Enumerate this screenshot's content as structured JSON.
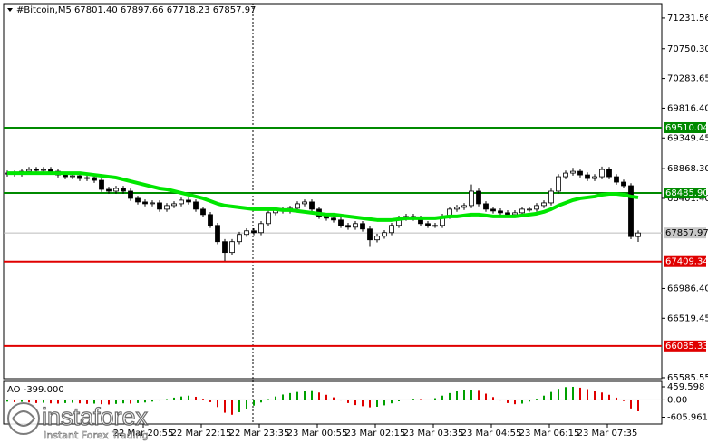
{
  "chart_data": {
    "type": "candlestick",
    "title": "#Bitcoin,M5  67801.40 67897.66 67718.23 67857.97",
    "ylim": [
      65571,
      71458
    ],
    "yticks": [
      71231.56,
      {
        "value": 70750.3,
        "label": "70750.30"
      },
      70283.65,
      {
        "value": 69816.4,
        "label": "69816.40"
      },
      69349.45,
      {
        "value": 68868.3,
        "label": "68868.30"
      },
      {
        "value": 68401.4,
        "label": "68401.40"
      },
      {
        "value": 66986.4,
        "label": "66986.40"
      },
      66519.45,
      65585.55
    ],
    "x_labels": [
      "22 Mar 20:55",
      "22 Mar 22:15",
      "22 Mar 23:35",
      "23 Mar 00:55",
      "23 Mar 02:15",
      "23 Mar 03:35",
      "23 Mar 04:55",
      "23 Mar 06:15",
      "23 Mar 07:35"
    ],
    "up_color": "#ffffff",
    "down_color": "#000000",
    "candles": [
      [
        68783.6,
        68837.8,
        68743.6,
        68797.8
      ],
      [
        68797.8,
        68837.8,
        68743.6,
        68783.6
      ],
      [
        68783.6,
        68866.1,
        68743.6,
        68826.1
      ],
      [
        68826.1,
        68894.4,
        68786.1,
        68854.4
      ],
      [
        68854.4,
        68894.4,
        68800.2,
        68840.2
      ],
      [
        68840.2,
        68894.4,
        68800.2,
        68854.4
      ],
      [
        68854.4,
        68894.4,
        68786.1,
        68826.1
      ],
      [
        68826.1,
        68866.1,
        68729.5,
        68769.5
      ],
      [
        68769.5,
        68809.5,
        68701.2,
        68741.2
      ],
      [
        68741.2,
        68795.3,
        68701.2,
        68755.3
      ],
      [
        68755.3,
        68795.3,
        68672.9,
        68712.9
      ],
      [
        68712.9,
        68767.0,
        68672.9,
        68727.0
      ],
      [
        68727.0,
        68767.0,
        68644.6,
        68684.6
      ],
      [
        68684.6,
        68724.6,
        68503.1,
        68543.1
      ],
      [
        68543.1,
        68583.1,
        68474.8,
        68514.8
      ],
      [
        68514.8,
        68597.2,
        68474.8,
        68557.2
      ],
      [
        68557.2,
        68597.2,
        68474.8,
        68514.8
      ],
      [
        68514.8,
        68554.8,
        68361.6,
        68401.6
      ],
      [
        68401.6,
        68441.6,
        68305.0,
        68345.0
      ],
      [
        68345.0,
        68385.0,
        68276.7,
        68316.7
      ],
      [
        68316.7,
        68370.8,
        68276.7,
        68330.8
      ],
      [
        68330.8,
        68370.8,
        68191.8,
        68231.8
      ],
      [
        68231.8,
        68328.4,
        68191.8,
        68288.4
      ],
      [
        68288.4,
        68356.7,
        68248.4,
        68316.7
      ],
      [
        68316.7,
        68413.3,
        68276.7,
        68373.3
      ],
      [
        68373.3,
        68413.3,
        68305.0,
        68345.0
      ],
      [
        68345.0,
        68385.0,
        68191.8,
        68231.8
      ],
      [
        68231.8,
        68271.8,
        68106.9,
        68146.9
      ],
      [
        68146.9,
        68186.9,
        67937.1,
        67977.1
      ],
      [
        67977.1,
        68017.1,
        67682.4,
        67722.4
      ],
      [
        67722.4,
        67762.4,
        67420.0,
        67552.6
      ],
      [
        67552.6,
        67762.4,
        67512.6,
        67722.4
      ],
      [
        67722.4,
        67875.6,
        67682.4,
        67835.6
      ],
      [
        67835.6,
        67932.2,
        67795.6,
        67892.2
      ],
      [
        67892.2,
        67932.2,
        67823.9,
        67863.9
      ],
      [
        67863.9,
        68045.4,
        67823.9,
        68005.4
      ],
      [
        68005.4,
        68215.2,
        67965.4,
        68175.2
      ],
      [
        68175.2,
        68271.8,
        68135.2,
        68231.8
      ],
      [
        68231.8,
        68271.8,
        68163.5,
        68203.5
      ],
      [
        68203.5,
        68285.9,
        68163.5,
        68245.9
      ],
      [
        68245.9,
        68356.7,
        68205.9,
        68316.7
      ],
      [
        68316.7,
        68385.0,
        68276.7,
        68345.0
      ],
      [
        68345.0,
        68385.0,
        68191.8,
        68231.8
      ],
      [
        68231.8,
        68271.8,
        68078.6,
        68118.6
      ],
      [
        68118.6,
        68158.6,
        68050.3,
        68090.3
      ],
      [
        68090.3,
        68130.3,
        68022.0,
        68062.0
      ],
      [
        68062.0,
        68102.0,
        67937.1,
        67977.1
      ],
      [
        67977.1,
        68017.1,
        67908.8,
        67948.8
      ],
      [
        67948.8,
        68045.4,
        67908.8,
        68005.4
      ],
      [
        68005.4,
        68045.4,
        67880.5,
        67920.5
      ],
      [
        67920.5,
        67960.5,
        67640.0,
        67750.7
      ],
      [
        67750.7,
        67847.3,
        67710.7,
        67807.3
      ],
      [
        67807.3,
        67903.9,
        67767.3,
        67863.9
      ],
      [
        67863.9,
        68017.1,
        67823.9,
        67977.1
      ],
      [
        67977.1,
        68130.3,
        67937.1,
        68090.3
      ],
      [
        68090.3,
        68158.6,
        68050.3,
        68118.6
      ],
      [
        68118.6,
        68158.6,
        68050.3,
        68090.3
      ],
      [
        68090.3,
        68130.3,
        67965.4,
        68005.4
      ],
      [
        68005.4,
        68045.4,
        67937.1,
        67977.1
      ],
      [
        67977.1,
        68017.1,
        67937.1,
        67977.1
      ],
      [
        67977.1,
        68158.6,
        67937.1,
        68118.6
      ],
      [
        68118.6,
        68271.8,
        68078.6,
        68231.8
      ],
      [
        68231.8,
        68300.1,
        68191.8,
        68260.1
      ],
      [
        68260.1,
        68328.4,
        68220.1,
        68288.4
      ],
      [
        68288.4,
        68620.0,
        68248.4,
        68514.8
      ],
      [
        68514.8,
        68554.8,
        68276.7,
        68316.7
      ],
      [
        68316.7,
        68356.7,
        68191.8,
        68231.8
      ],
      [
        68231.8,
        68271.8,
        68163.5,
        68203.5
      ],
      [
        68203.5,
        68243.5,
        68135.2,
        68175.2
      ],
      [
        68175.2,
        68215.2,
        68106.9,
        68146.9
      ],
      [
        68146.9,
        68215.2,
        68106.9,
        68175.2
      ],
      [
        68175.2,
        68271.8,
        68135.2,
        68231.8
      ],
      [
        68231.8,
        68271.8,
        68191.8,
        68231.8
      ],
      [
        68231.8,
        68328.4,
        68191.8,
        68288.4
      ],
      [
        68288.4,
        68370.8,
        68248.4,
        68330.8
      ],
      [
        68330.8,
        68554.8,
        68290.8,
        68514.8
      ],
      [
        68514.8,
        68781.2,
        68474.8,
        68741.2
      ],
      [
        68741.2,
        68837.8,
        68701.2,
        68797.8
      ],
      [
        68797.8,
        68880.0,
        68757.8,
        68826.1
      ],
      [
        68826.1,
        68866.1,
        68729.5,
        68769.5
      ],
      [
        68769.5,
        68809.5,
        68672.9,
        68712.9
      ],
      [
        68712.9,
        68781.2,
        68672.9,
        68741.2
      ],
      [
        68741.2,
        68900.0,
        68701.2,
        68854.4
      ],
      [
        68854.4,
        68894.4,
        68701.2,
        68741.2
      ],
      [
        68741.2,
        68781.2,
        68616.3,
        68656.3
      ],
      [
        68656.3,
        68696.3,
        68559.7,
        68599.7
      ],
      [
        68599.7,
        68639.7,
        67760.0,
        67801.4
      ],
      [
        67801.4,
        67897.66,
        67718.23,
        67857.97
      ]
    ],
    "ma": {
      "color": "#00e600",
      "values": [
        68797.8,
        68797.8,
        68797.8,
        68797.8,
        68797.8,
        68797.8,
        68797.8,
        68797.8,
        68797.8,
        68797.8,
        68797.8,
        68783.6,
        68769.5,
        68755.3,
        68741.2,
        68727.0,
        68698.7,
        68670.4,
        68642.1,
        68613.8,
        68585.5,
        68557.2,
        68543.1,
        68514.8,
        68486.5,
        68458.2,
        68429.9,
        68401.6,
        68359.1,
        68316.7,
        68288.4,
        68274.2,
        68260.1,
        68245.9,
        68231.8,
        68231.8,
        68231.8,
        68231.8,
        68217.6,
        68217.6,
        68203.5,
        68189.3,
        68175.2,
        68161.0,
        68146.9,
        68146.9,
        68132.7,
        68118.6,
        68104.4,
        68090.3,
        68076.1,
        68062.0,
        68062.0,
        68062.0,
        68076.1,
        68090.3,
        68090.3,
        68090.3,
        68090.3,
        68090.3,
        68104.4,
        68118.6,
        68118.6,
        68132.7,
        68146.9,
        68146.9,
        68132.7,
        68118.6,
        68118.6,
        68118.6,
        68118.6,
        68132.7,
        68146.9,
        68161.0,
        68189.3,
        68231.8,
        68288.4,
        68330.8,
        68373.3,
        68401.6,
        68415.7,
        68429.9,
        68458.2,
        68472.3,
        68472.3,
        68458.2,
        68429.9,
        68415.7
      ]
    },
    "levels": [
      {
        "value": 69510.04,
        "color": "#008a00"
      },
      {
        "value": 68485.9,
        "label": "68485.90",
        "color": "#008a00"
      },
      {
        "value": 67409.34,
        "color": "#e00000"
      },
      {
        "value": 66085.33,
        "color": "#e00000"
      }
    ],
    "ao": {
      "title": "AO -399.000",
      "up_color": "#00a000",
      "down_color": "#e00000",
      "ylim": [
        -845,
        650
      ],
      "yticks": [
        459.598,
        {
          "value": 0,
          "label": "0.00"
        },
        -605.961
      ],
      "values": [
        -60,
        -80,
        -70,
        -90,
        -110,
        -100,
        -120,
        -130,
        -110,
        -100,
        -120,
        -140,
        -130,
        -150,
        -160,
        -140,
        -120,
        -130,
        -110,
        -90,
        -60,
        -20,
        30,
        80,
        120,
        150,
        110,
        40,
        -80,
        -250,
        -450,
        -520,
        -430,
        -320,
        -200,
        -90,
        30,
        120,
        190,
        240,
        280,
        300,
        310,
        260,
        180,
        90,
        -20,
        -110,
        -180,
        -220,
        -260,
        -240,
        -190,
        -120,
        -50,
        10,
        40,
        30,
        10,
        60,
        150,
        240,
        300,
        340,
        360,
        320,
        220,
        100,
        -20,
        -110,
        -150,
        -130,
        -60,
        40,
        150,
        280,
        390,
        450,
        460,
        430,
        380,
        300,
        260,
        180,
        80,
        -40,
        -300,
        -399
      ]
    },
    "logo": {
      "name": "instaforex",
      "tagline": "Instant Forex Trading"
    }
  }
}
